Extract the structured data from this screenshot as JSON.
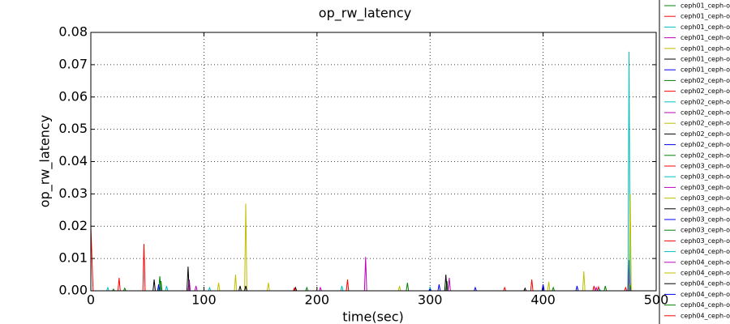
{
  "chart_data": {
    "type": "line",
    "title": "op_rw_latency",
    "x_label": "time(sec)",
    "y_label": "op_rw_latency",
    "xlim": [
      0,
      500
    ],
    "ylim": [
      0,
      0.08
    ],
    "xticks": [
      0,
      100,
      200,
      300,
      400,
      500
    ],
    "yticks": [
      {
        "value": 0,
        "label": "0.00"
      },
      {
        "value": 0.01,
        "label": "0.01"
      },
      {
        "value": 0.02,
        "label": "0.02"
      },
      {
        "value": 0.03,
        "label": "0.03"
      },
      {
        "value": 0.04,
        "label": "0.04"
      },
      {
        "value": 0.05,
        "label": "0.05"
      },
      {
        "value": 0.06,
        "label": "0.06"
      },
      {
        "value": 0.07,
        "label": "0.07"
      },
      {
        "value": 0.08,
        "label": "0.08"
      }
    ],
    "grid": true,
    "series": [
      {
        "name": "ceph01_ceph-o",
        "color": "#008000",
        "x": [
          0,
          60,
          61,
          62,
          279,
          280,
          281,
          314,
          315,
          316,
          480
        ],
        "values": [
          0,
          0,
          0.0045,
          0,
          0,
          0.0025,
          0,
          0,
          0.003,
          0,
          0
        ]
      },
      {
        "name": "ceph01_ceph-o",
        "color": "#ff0000",
        "x": [
          0,
          2,
          24,
          25,
          26,
          46,
          47,
          48,
          480
        ],
        "values": [
          0.02,
          0,
          0,
          0.004,
          0,
          0,
          0.0145,
          0,
          0
        ]
      },
      {
        "name": "ceph01_ceph-o",
        "color": "#00bfbf",
        "x": [
          0,
          14,
          15,
          16,
          475,
          476,
          477,
          480
        ],
        "values": [
          0,
          0,
          0.001,
          0,
          0,
          0.074,
          0,
          0
        ]
      },
      {
        "name": "ceph01_ceph-o",
        "color": "#bf00bf",
        "x": [
          0,
          86,
          87,
          88,
          242,
          243,
          244,
          480
        ],
        "values": [
          0,
          0,
          0.0035,
          0,
          0,
          0.0105,
          0,
          0
        ]
      },
      {
        "name": "ceph01_ceph-o",
        "color": "#bfbf00",
        "x": [
          0,
          127,
          128,
          129,
          136,
          137,
          138,
          480
        ],
        "values": [
          0,
          0,
          0.005,
          0,
          0,
          0.027,
          0,
          0
        ]
      },
      {
        "name": "ceph01_ceph-o",
        "color": "#000000",
        "x": [
          0,
          55,
          56,
          57,
          85,
          86,
          87,
          480
        ],
        "values": [
          0,
          0,
          0.0035,
          0,
          0,
          0.0075,
          0,
          0
        ]
      },
      {
        "name": "ceph01_ceph-o",
        "color": "#0000ff",
        "x": [
          0,
          307,
          308,
          309,
          475,
          476,
          477,
          480
        ],
        "values": [
          0,
          0,
          0.002,
          0,
          0,
          0.0095,
          0,
          0
        ]
      },
      {
        "name": "ceph02_ceph-o",
        "color": "#008000",
        "x": [
          0,
          61,
          62,
          63,
          476,
          477,
          478,
          480
        ],
        "values": [
          0,
          0,
          0.003,
          0,
          0,
          0.002,
          0,
          0
        ]
      },
      {
        "name": "ceph02_ceph-o",
        "color": "#ff0000",
        "x": [
          0,
          226,
          227,
          228,
          389,
          390,
          391,
          480
        ],
        "values": [
          0,
          0,
          0.0035,
          0,
          0,
          0.0035,
          0,
          0
        ]
      },
      {
        "name": "ceph02_ceph-o",
        "color": "#00bfbf",
        "x": [
          0,
          66,
          67,
          68,
          299,
          300,
          301,
          480
        ],
        "values": [
          0,
          0,
          0.0015,
          0,
          0,
          0.001,
          0,
          0
        ]
      },
      {
        "name": "ceph02_ceph-o",
        "color": "#bf00bf",
        "x": [
          0,
          316,
          317,
          318,
          480
        ],
        "values": [
          0,
          0,
          0.004,
          0,
          0
        ]
      },
      {
        "name": "ceph02_ceph-o",
        "color": "#bfbf00",
        "x": [
          0,
          435,
          436,
          437,
          476,
          477,
          478,
          480
        ],
        "values": [
          0,
          0,
          0.006,
          0,
          0,
          0.03,
          0,
          0
        ]
      },
      {
        "name": "ceph02_ceph-o",
        "color": "#000000",
        "x": [
          0,
          136,
          137,
          138,
          313,
          314,
          315,
          480
        ],
        "values": [
          0,
          0,
          0.0015,
          0,
          0,
          0.005,
          0,
          0
        ]
      },
      {
        "name": "ceph02_ceph-o",
        "color": "#0000ff",
        "x": [
          0,
          399,
          400,
          401,
          429,
          430,
          431,
          480
        ],
        "values": [
          0,
          0,
          0.002,
          0,
          0,
          0.0015,
          0,
          0
        ]
      },
      {
        "name": "ceph02_ceph-o",
        "color": "#008000",
        "x": [
          0,
          190,
          191,
          192,
          454,
          455,
          456,
          480
        ],
        "values": [
          0,
          0,
          0.001,
          0,
          0,
          0.0015,
          0,
          0
        ]
      },
      {
        "name": "ceph03_ceph-o",
        "color": "#ff0000",
        "x": [
          0,
          365,
          366,
          367,
          444,
          445,
          446,
          480
        ],
        "values": [
          0,
          0,
          0.001,
          0,
          0,
          0.0015,
          0,
          0
        ]
      },
      {
        "name": "ceph03_ceph-o",
        "color": "#00bfbf",
        "x": [
          0,
          104,
          105,
          106,
          221,
          222,
          223,
          480
        ],
        "values": [
          0,
          0,
          0.001,
          0,
          0,
          0.0015,
          0,
          0
        ]
      },
      {
        "name": "ceph03_ceph-o",
        "color": "#bf00bf",
        "x": [
          0,
          92,
          93,
          94,
          202,
          203,
          204,
          480
        ],
        "values": [
          0,
          0,
          0.0015,
          0,
          0,
          0.001,
          0,
          0
        ]
      },
      {
        "name": "ceph03_ceph-o",
        "color": "#bfbf00",
        "x": [
          0,
          112,
          113,
          114,
          156,
          157,
          158,
          480
        ],
        "values": [
          0,
          0,
          0.0025,
          0,
          0,
          0.0025,
          0,
          0
        ]
      },
      {
        "name": "ceph03_ceph-o",
        "color": "#000000",
        "x": [
          0,
          131,
          132,
          133,
          180,
          181,
          182,
          480
        ],
        "values": [
          0,
          0,
          0.0015,
          0,
          0,
          0.001,
          0,
          0
        ]
      },
      {
        "name": "ceph03_ceph-o",
        "color": "#0000ff",
        "x": [
          0,
          59,
          60,
          61,
          339,
          340,
          341,
          480
        ],
        "values": [
          0,
          0,
          0.002,
          0,
          0,
          0.001,
          0,
          0
        ]
      },
      {
        "name": "ceph03_ceph-o",
        "color": "#008000",
        "x": [
          0,
          19,
          20,
          21,
          408,
          409,
          410,
          480
        ],
        "values": [
          0,
          0,
          0.0005,
          0,
          0,
          0.001,
          0,
          0
        ]
      },
      {
        "name": "ceph03_ceph-o",
        "color": "#ff0000",
        "x": [
          0,
          179,
          180,
          181,
          448,
          449,
          450,
          480
        ],
        "values": [
          0,
          0,
          0.0008,
          0,
          0,
          0.0012,
          0,
          0
        ]
      },
      {
        "name": "ceph04_ceph-o",
        "color": "#00bfbf",
        "x": [
          0,
          449,
          450,
          451,
          480
        ],
        "values": [
          0,
          0,
          0.0005,
          0,
          0
        ]
      },
      {
        "name": "ceph04_ceph-o",
        "color": "#bf00bf",
        "x": [
          0,
          446,
          447,
          448,
          480
        ],
        "values": [
          0,
          0,
          0.001,
          0,
          0
        ]
      },
      {
        "name": "ceph04_ceph-o",
        "color": "#bfbf00",
        "x": [
          0,
          272,
          273,
          274,
          404,
          405,
          406,
          480
        ],
        "values": [
          0,
          0,
          0.0015,
          0,
          0,
          0.0028,
          0,
          0
        ]
      },
      {
        "name": "ceph04_ceph-o",
        "color": "#000000",
        "x": [
          0,
          383,
          384,
          385,
          480
        ],
        "values": [
          0,
          0,
          0.0008,
          0,
          0
        ]
      },
      {
        "name": "ceph04_ceph-o",
        "color": "#0000ff",
        "x": [
          0,
          299,
          300,
          301,
          480
        ],
        "values": [
          0,
          0,
          0.0005,
          0,
          0
        ]
      },
      {
        "name": "ceph04_ceph-o",
        "color": "#008000",
        "x": [
          0,
          29,
          30,
          31,
          480
        ],
        "values": [
          0,
          0,
          0.0008,
          0,
          0
        ]
      },
      {
        "name": "ceph04_ceph-o",
        "color": "#ff0000",
        "x": [
          0,
          472,
          473,
          474,
          480
        ],
        "values": [
          0,
          0,
          0.001,
          0,
          0
        ]
      }
    ]
  }
}
